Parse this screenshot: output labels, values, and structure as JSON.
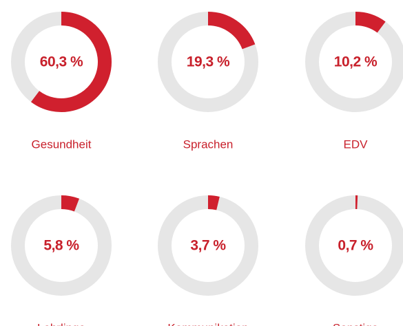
{
  "chart_data": [
    {
      "type": "donut",
      "categories": [
        "Gesundheit"
      ],
      "values": [
        60.3
      ],
      "value_labels": [
        "60,3 %"
      ],
      "color": "#d0202e"
    },
    {
      "type": "donut",
      "categories": [
        "Sprachen"
      ],
      "values": [
        19.3
      ],
      "value_labels": [
        "19,3 %"
      ],
      "color": "#d0202e"
    },
    {
      "type": "donut",
      "categories": [
        "EDV"
      ],
      "values": [
        10.2
      ],
      "value_labels": [
        "10,2 %"
      ],
      "color": "#d0202e"
    },
    {
      "type": "donut",
      "categories": [
        "Lehrlinge"
      ],
      "values": [
        5.8
      ],
      "value_labels": [
        "5,8 %"
      ],
      "color": "#d0202e"
    },
    {
      "type": "donut",
      "categories": [
        "Kommunikation"
      ],
      "values": [
        3.7
      ],
      "value_labels": [
        "3,7 %"
      ],
      "color": "#d0202e"
    },
    {
      "type": "donut",
      "categories": [
        "Sonstige"
      ],
      "values": [
        0.7
      ],
      "value_labels": [
        "0,7 %"
      ],
      "color": "#d0202e"
    }
  ]
}
